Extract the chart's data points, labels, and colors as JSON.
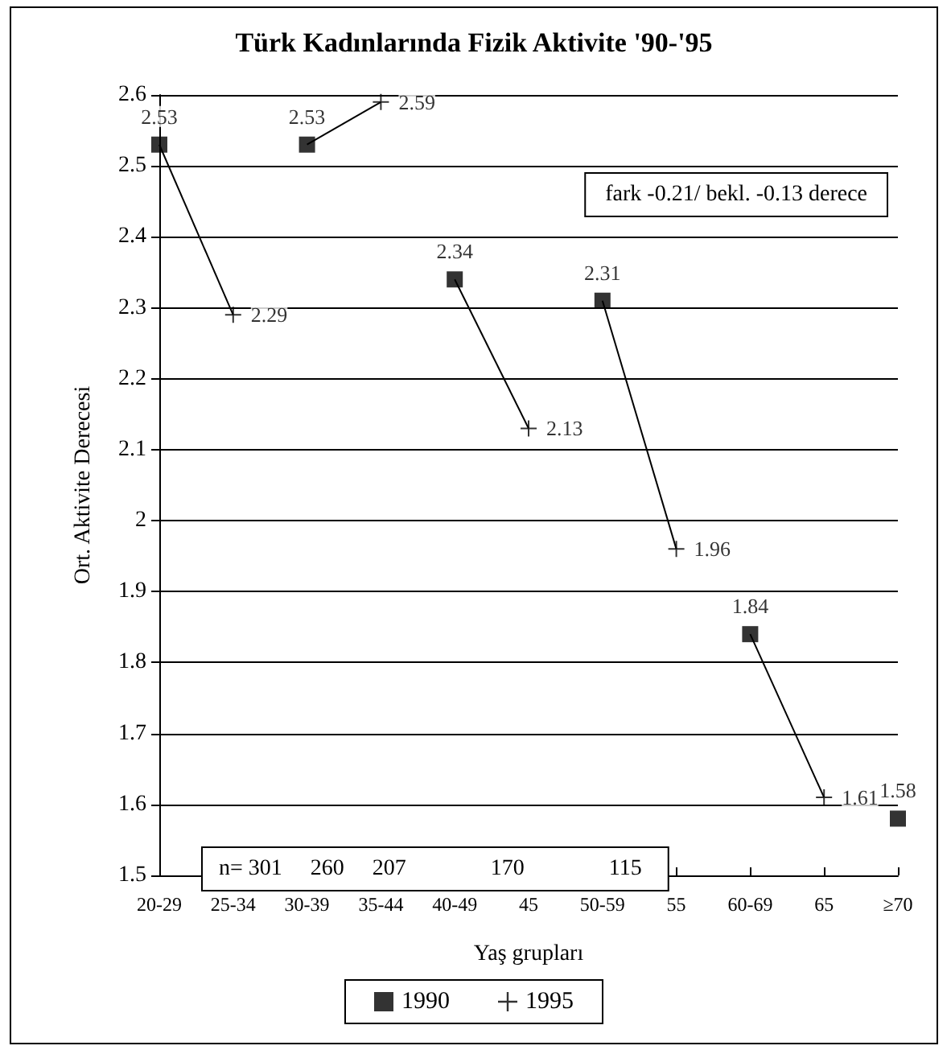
{
  "chart_data": {
    "type": "scatter",
    "title": "Türk Kadınlarında Fizik Aktivite '90-'95",
    "xlabel": "Yaş grupları",
    "ylabel": "Ort. Aktivite Derecesi",
    "categories": [
      "20-29",
      "25-34",
      "30-39",
      "35-44",
      "40-49",
      "45",
      "50-59",
      "55",
      "60-69",
      "65",
      "≥70"
    ],
    "series": [
      {
        "name": "1990",
        "marker": "square",
        "color": "#000000",
        "values": [
          2.53,
          null,
          2.53,
          null,
          2.34,
          null,
          2.31,
          null,
          1.84,
          null,
          1.58
        ],
        "value_labels": [
          "2.53",
          null,
          "2.53",
          null,
          "2.34",
          null,
          "2.31",
          null,
          "1.84",
          null,
          "1.58"
        ]
      },
      {
        "name": "1995",
        "marker": "cross",
        "color": "#000000",
        "values": [
          null,
          2.29,
          null,
          2.59,
          null,
          2.13,
          null,
          1.96,
          null,
          1.61,
          null
        ],
        "value_labels": [
          null,
          "2.29",
          null,
          "2.59",
          null,
          "2.13",
          null,
          "1.96",
          null,
          "1.61",
          null
        ]
      },
      {
        "type": "line",
        "marker": "none",
        "line_style": "solid",
        "color": "#000000",
        "values": [
          2.53,
          2.29,
          null,
          null,
          null,
          null,
          null,
          null,
          null,
          null,
          null
        ]
      },
      {
        "type": "line",
        "marker": "none",
        "line_style": "solid",
        "color": "#000000",
        "values": [
          null,
          null,
          2.53,
          2.59,
          null,
          null,
          null,
          null,
          null,
          null,
          null
        ]
      },
      {
        "type": "line",
        "marker": "none",
        "line_style": "solid",
        "color": "#000000",
        "values": [
          null,
          null,
          null,
          null,
          2.34,
          2.13,
          null,
          null,
          null,
          null,
          null
        ]
      },
      {
        "type": "line",
        "marker": "none",
        "line_style": "solid",
        "color": "#000000",
        "values": [
          null,
          null,
          null,
          null,
          null,
          null,
          2.31,
          1.96,
          null,
          null,
          null
        ]
      },
      {
        "type": "line",
        "marker": "none",
        "line_style": "solid",
        "color": "#000000",
        "values": [
          null,
          null,
          null,
          null,
          null,
          null,
          null,
          null,
          1.84,
          1.61,
          null
        ]
      }
    ],
    "ylim": [
      1.5,
      2.6
    ],
    "yticks": [
      1.5,
      1.6,
      1.7,
      1.8,
      1.9,
      2,
      2.1,
      2.2,
      2.3,
      2.4,
      2.5,
      2.6
    ],
    "grid": "y",
    "legend": "bottom",
    "annotations": [
      "fark -0.21/ bekl. -0.13 derece",
      "n= 301     260     207               170               115"
    ]
  }
}
